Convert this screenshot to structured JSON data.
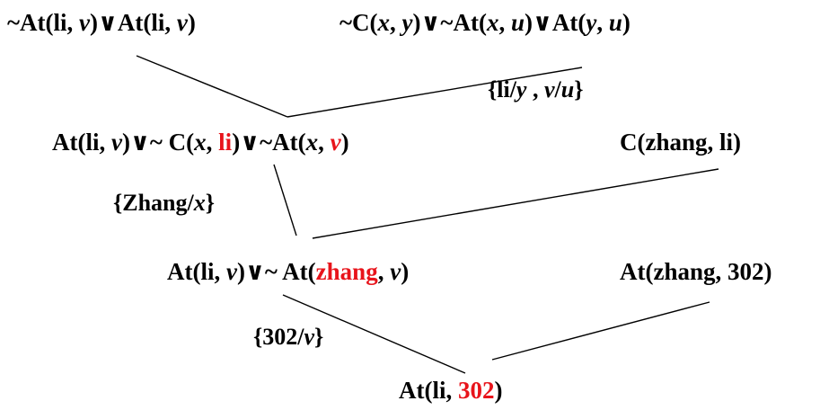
{
  "clauses": {
    "top_left": {
      "segments": [
        {
          "text": "~At(li, ",
          "style": "plain"
        },
        {
          "text": "v",
          "style": "var"
        },
        {
          "text": ")∨At(li, ",
          "style": "plain"
        },
        {
          "text": "v",
          "style": "var"
        },
        {
          "text": ")",
          "style": "plain"
        }
      ]
    },
    "top_right": {
      "segments": [
        {
          "text": "~C(",
          "style": "plain"
        },
        {
          "text": "x",
          "style": "var"
        },
        {
          "text": ", ",
          "style": "plain"
        },
        {
          "text": "y",
          "style": "var"
        },
        {
          "text": ")∨~At(",
          "style": "plain"
        },
        {
          "text": "x",
          "style": "var"
        },
        {
          "text": ", ",
          "style": "plain"
        },
        {
          "text": "u",
          "style": "var"
        },
        {
          "text": ")∨At(",
          "style": "plain"
        },
        {
          "text": "y",
          "style": "var"
        },
        {
          "text": ", ",
          "style": "plain"
        },
        {
          "text": "u",
          "style": "var"
        },
        {
          "text": ")",
          "style": "plain"
        }
      ]
    },
    "mid_left": {
      "segments": [
        {
          "text": "At(li, ",
          "style": "plain"
        },
        {
          "text": "v",
          "style": "var"
        },
        {
          "text": ")∨~ C(",
          "style": "plain"
        },
        {
          "text": "x",
          "style": "var"
        },
        {
          "text": ", ",
          "style": "plain"
        },
        {
          "text": "li",
          "style": "highlight"
        },
        {
          "text": ")∨~At(",
          "style": "plain"
        },
        {
          "text": "x",
          "style": "var"
        },
        {
          "text": ", ",
          "style": "plain"
        },
        {
          "text": "v",
          "style": "highlight-var"
        },
        {
          "text": ")",
          "style": "plain"
        }
      ]
    },
    "mid_right": {
      "segments": [
        {
          "text": "C(zhang, li)",
          "style": "plain"
        }
      ]
    },
    "low_left": {
      "segments": [
        {
          "text": "At(li, ",
          "style": "plain"
        },
        {
          "text": "v",
          "style": "var"
        },
        {
          "text": ")∨~ At(",
          "style": "plain"
        },
        {
          "text": "zhang",
          "style": "highlight"
        },
        {
          "text": ", ",
          "style": "plain"
        },
        {
          "text": "v",
          "style": "var"
        },
        {
          "text": ")",
          "style": "plain"
        }
      ]
    },
    "low_right": {
      "segments": [
        {
          "text": "At(zhang, 302)",
          "style": "plain"
        }
      ]
    },
    "bottom": {
      "segments": [
        {
          "text": "At(li, ",
          "style": "plain"
        },
        {
          "text": "302",
          "style": "highlight"
        },
        {
          "text": ")",
          "style": "plain"
        }
      ]
    }
  },
  "substitutions": {
    "first": {
      "segments": [
        {
          "text": "{li/",
          "style": "plain"
        },
        {
          "text": "y",
          "style": "var"
        },
        {
          "text": " , ",
          "style": "plain"
        },
        {
          "text": "v",
          "style": "var"
        },
        {
          "text": "/",
          "style": "plain"
        },
        {
          "text": "u",
          "style": "var"
        },
        {
          "text": "}",
          "style": "plain"
        }
      ]
    },
    "second": {
      "segments": [
        {
          "text": "{Zhang/",
          "style": "plain"
        },
        {
          "text": "x",
          "style": "var"
        },
        {
          "text": "}",
          "style": "plain"
        }
      ]
    },
    "third": {
      "segments": [
        {
          "text": "{302/",
          "style": "plain"
        },
        {
          "text": "v",
          "style": "var"
        },
        {
          "text": "}",
          "style": "plain"
        }
      ]
    }
  },
  "colors": {
    "text": "#000000",
    "highlight": "#e8141b",
    "lines": "#000000",
    "background": "#ffffff"
  }
}
